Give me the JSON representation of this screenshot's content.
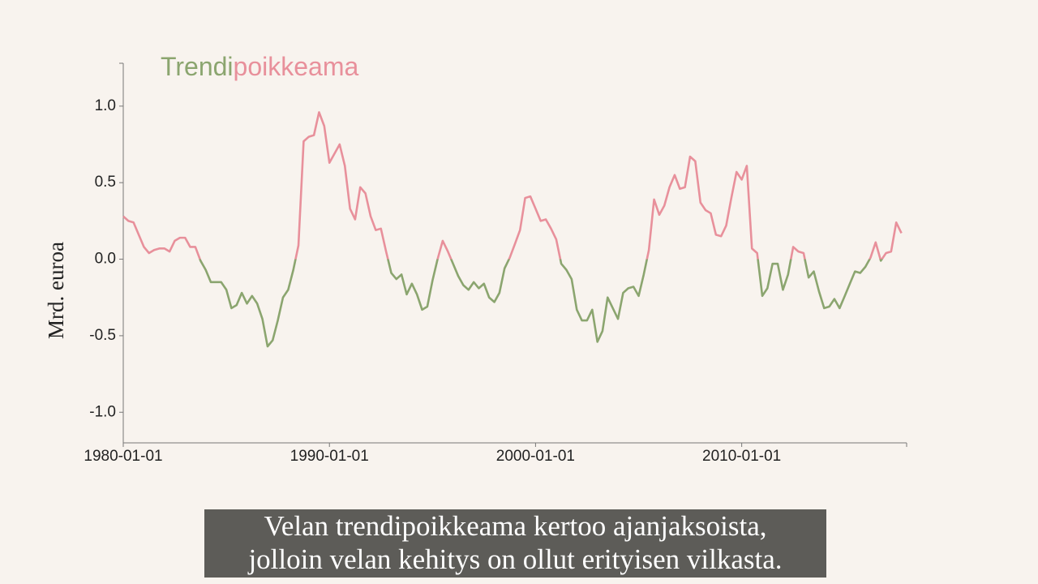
{
  "chart_data": {
    "type": "line",
    "title_parts": [
      {
        "text": "Trendi",
        "color": "#8ba56f"
      },
      {
        "text": "poikkeama",
        "color": "#e8909b"
      }
    ],
    "y_label": "Mrd. euroa",
    "x": [
      "1980-01-01",
      "1980-04-01",
      "1980-07-01",
      "1980-10-01",
      "1981-01-01",
      "1981-04-01",
      "1981-07-01",
      "1981-10-01",
      "1982-01-01",
      "1982-04-01",
      "1982-07-01",
      "1982-10-01",
      "1983-01-01",
      "1983-04-01",
      "1983-07-01",
      "1983-10-01",
      "1984-01-01",
      "1984-04-01",
      "1984-07-01",
      "1984-10-01",
      "1985-01-01",
      "1985-04-01",
      "1985-07-01",
      "1985-10-01",
      "1986-01-01",
      "1986-04-01",
      "1986-07-01",
      "1986-10-01",
      "1987-01-01",
      "1987-04-01",
      "1987-07-01",
      "1987-10-01",
      "1988-01-01",
      "1988-04-01",
      "1988-07-01",
      "1988-10-01",
      "1989-01-01",
      "1989-04-01",
      "1989-07-01",
      "1989-10-01",
      "1990-01-01",
      "1990-04-01",
      "1990-07-01",
      "1990-10-01",
      "1991-01-01",
      "1991-04-01",
      "1991-07-01",
      "1991-10-01",
      "1992-01-01",
      "1992-04-01",
      "1992-07-01",
      "1992-10-01",
      "1993-01-01",
      "1993-04-01",
      "1993-07-01",
      "1993-10-01",
      "1994-01-01",
      "1994-04-01",
      "1994-07-01",
      "1994-10-01",
      "1995-01-01",
      "1995-04-01",
      "1995-07-01",
      "1995-10-01",
      "1996-01-01",
      "1996-04-01",
      "1996-07-01",
      "1996-10-01",
      "1997-01-01",
      "1997-04-01",
      "1997-07-01",
      "1997-10-01",
      "1998-01-01",
      "1998-04-01",
      "1998-07-01",
      "1998-10-01",
      "1999-01-01",
      "1999-04-01",
      "1999-07-01",
      "1999-10-01",
      "2000-01-01",
      "2000-04-01",
      "2000-07-01",
      "2000-10-01",
      "2001-01-01",
      "2001-04-01",
      "2001-07-01",
      "2001-10-01",
      "2002-01-01",
      "2002-04-01",
      "2002-07-01",
      "2002-10-01",
      "2003-01-01",
      "2003-04-01",
      "2003-07-01",
      "2003-10-01",
      "2004-01-01",
      "2004-04-01",
      "2004-07-01",
      "2004-10-01",
      "2005-01-01",
      "2005-04-01",
      "2005-07-01",
      "2005-10-01",
      "2006-01-01",
      "2006-04-01",
      "2006-07-01",
      "2006-10-01",
      "2007-01-01",
      "2007-04-01",
      "2007-07-01",
      "2007-10-01",
      "2008-01-01",
      "2008-04-01",
      "2008-07-01",
      "2008-10-01",
      "2009-01-01",
      "2009-04-01",
      "2009-07-01",
      "2009-10-01",
      "2010-01-01",
      "2010-04-01",
      "2010-07-01",
      "2010-10-01",
      "2011-01-01",
      "2011-04-01",
      "2011-07-01",
      "2011-10-01",
      "2012-01-01",
      "2012-04-01",
      "2012-07-01",
      "2012-10-01",
      "2013-01-01",
      "2013-04-01",
      "2013-07-01",
      "2013-10-01",
      "2014-01-01",
      "2014-04-01",
      "2014-07-01",
      "2014-10-01",
      "2015-01-01",
      "2015-04-01",
      "2015-07-01",
      "2015-10-01",
      "2016-01-01",
      "2016-04-01",
      "2016-07-01",
      "2016-10-01",
      "2017-01-01",
      "2017-04-01",
      "2017-07-01",
      "2017-10-01"
    ],
    "series": [
      {
        "color_positive": "#e8909b",
        "color_negative": "#8ba56f",
        "values": [
          0.28,
          0.25,
          0.24,
          0.16,
          0.08,
          0.04,
          0.06,
          0.07,
          0.07,
          0.05,
          0.12,
          0.14,
          0.14,
          0.08,
          0.08,
          -0.01,
          -0.07,
          -0.15,
          -0.15,
          -0.15,
          -0.2,
          -0.32,
          -0.3,
          -0.22,
          -0.29,
          -0.24,
          -0.29,
          -0.39,
          -0.57,
          -0.53,
          -0.4,
          -0.25,
          -0.2,
          -0.07,
          0.09,
          0.77,
          0.8,
          0.81,
          0.96,
          0.87,
          0.63,
          0.69,
          0.75,
          0.61,
          0.33,
          0.26,
          0.47,
          0.43,
          0.28,
          0.19,
          0.2,
          0.05,
          -0.09,
          -0.13,
          -0.1,
          -0.23,
          -0.16,
          -0.23,
          -0.33,
          -0.31,
          -0.14,
          0.0,
          0.12,
          0.05,
          -0.03,
          -0.11,
          -0.17,
          -0.2,
          -0.15,
          -0.19,
          -0.16,
          -0.25,
          -0.28,
          -0.22,
          -0.06,
          0.01,
          0.1,
          0.19,
          0.4,
          0.41,
          0.33,
          0.25,
          0.26,
          0.2,
          0.13,
          -0.03,
          -0.07,
          -0.13,
          -0.33,
          -0.4,
          -0.4,
          -0.33,
          -0.54,
          -0.47,
          -0.25,
          -0.32,
          -0.39,
          -0.22,
          -0.19,
          -0.18,
          -0.24,
          -0.1,
          0.06,
          0.39,
          0.29,
          0.35,
          0.47,
          0.55,
          0.46,
          0.47,
          0.67,
          0.64,
          0.37,
          0.32,
          0.3,
          0.16,
          0.15,
          0.22,
          0.4,
          0.57,
          0.52,
          0.61,
          0.07,
          0.04,
          -0.24,
          -0.19,
          -0.03,
          -0.03,
          -0.2,
          -0.1,
          0.08,
          0.05,
          0.04,
          -0.12,
          -0.08,
          -0.21,
          -0.32,
          -0.31,
          -0.26,
          -0.32,
          -0.24,
          -0.16,
          -0.08,
          -0.09,
          -0.05,
          0.01,
          0.11,
          -0.01,
          0.04,
          0.05,
          0.24,
          0.17
        ]
      }
    ],
    "xlim": [
      "1980-01-01",
      "2018-01-01"
    ],
    "xticks": [
      "1980-01-01",
      "1990-01-01",
      "2000-01-01",
      "2010-01-01"
    ],
    "ylim": [
      -1.2,
      1.28
    ],
    "yticks": [
      {
        "value": -1,
        "label": "-1.0"
      },
      -0.5,
      {
        "value": 0,
        "label": "0.0"
      },
      0.5,
      {
        "value": 1,
        "label": "1.0"
      }
    ]
  },
  "subtitles": [
    "Velan trendipoikkeama kertoo ajanjaksoista,",
    "jolloin velan kehitys on ollut erityisen vilkasta."
  ]
}
